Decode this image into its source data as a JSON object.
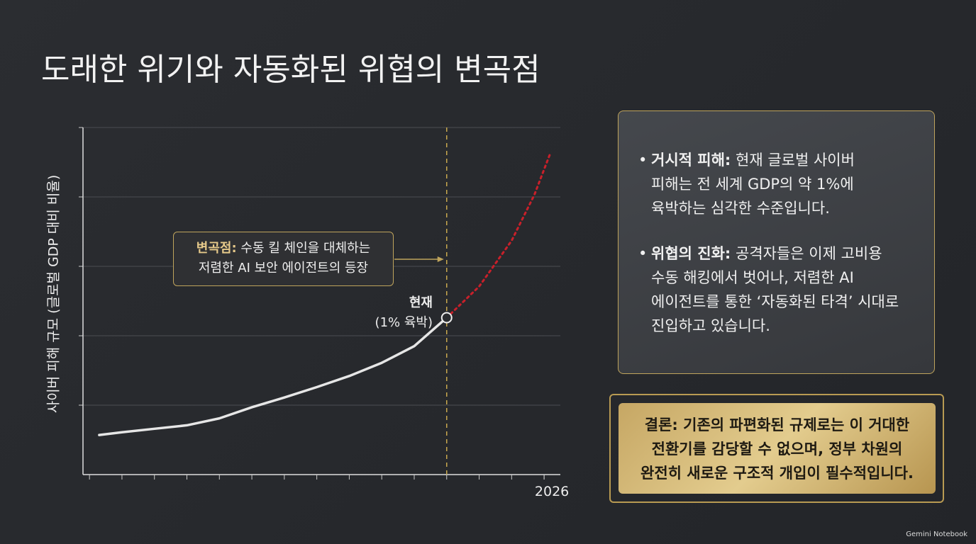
{
  "title": "도래한 위기와 자동화된 위협의 변곡점",
  "chart_data": {
    "type": "line",
    "y_label": "사이버 피해 규모 (글로벌 GDP 대비 비율)",
    "x": [
      2012.3,
      2013,
      2014,
      2015,
      2016,
      2017,
      2018,
      2019,
      2020,
      2021,
      2022,
      2023,
      2024,
      2025,
      2025.7,
      2026.2
    ],
    "series": [
      {
        "color": "#e6e6e6",
        "style": "solid",
        "values": [
          0.57,
          0.61,
          0.66,
          0.71,
          0.81,
          0.97,
          1.11,
          1.26,
          1.42,
          1.61,
          1.85,
          2.26,
          null,
          null,
          null,
          null
        ]
      },
      {
        "color": "#c8202a",
        "style": "dotted",
        "values": [
          null,
          null,
          null,
          null,
          null,
          null,
          null,
          null,
          null,
          null,
          null,
          2.26,
          2.71,
          3.37,
          4.03,
          4.64
        ]
      }
    ],
    "xlim": [
      2011.8,
      2026.5
    ],
    "xticks": [
      2026
    ],
    "ylim": [
      0,
      5
    ],
    "yticks": [
      1,
      2,
      3,
      4,
      5
    ],
    "grid": true,
    "annotations": [
      {
        "label": "변곡점:",
        "lines": [
          "수동 킬 체인을 대체하는",
          "저렴한 AI 보안 에이전트의 등장"
        ]
      },
      {
        "lines": [
          "현재",
          "(1% 육박)"
        ]
      }
    ]
  },
  "panel": {
    "bullets": [
      {
        "label": "거시적 피해:",
        "lines": [
          "현재 글로벌 사이버",
          "피해는 전 세계 GDP의 약 1%에",
          "육박하는 심각한 수준입니다."
        ]
      },
      {
        "label": "위협의 진화:",
        "lines": [
          "공격자들은 이제 고비용",
          "수동 해킹에서 벗어나, 저렴한 AI",
          "에이전트를 통한 ‘자동화된 타격’ 시대로",
          "진입하고 있습니다."
        ]
      }
    ]
  },
  "conclusion": {
    "label": "결론:",
    "lines": [
      "기존의 파편화된 규제로는 이 거대한",
      "전환기를 감당할 수 없으며, 정부 차원의",
      "완전히 새로운 구조적 개입이 필수적입니다."
    ]
  },
  "footer": "Gemini Notebook"
}
